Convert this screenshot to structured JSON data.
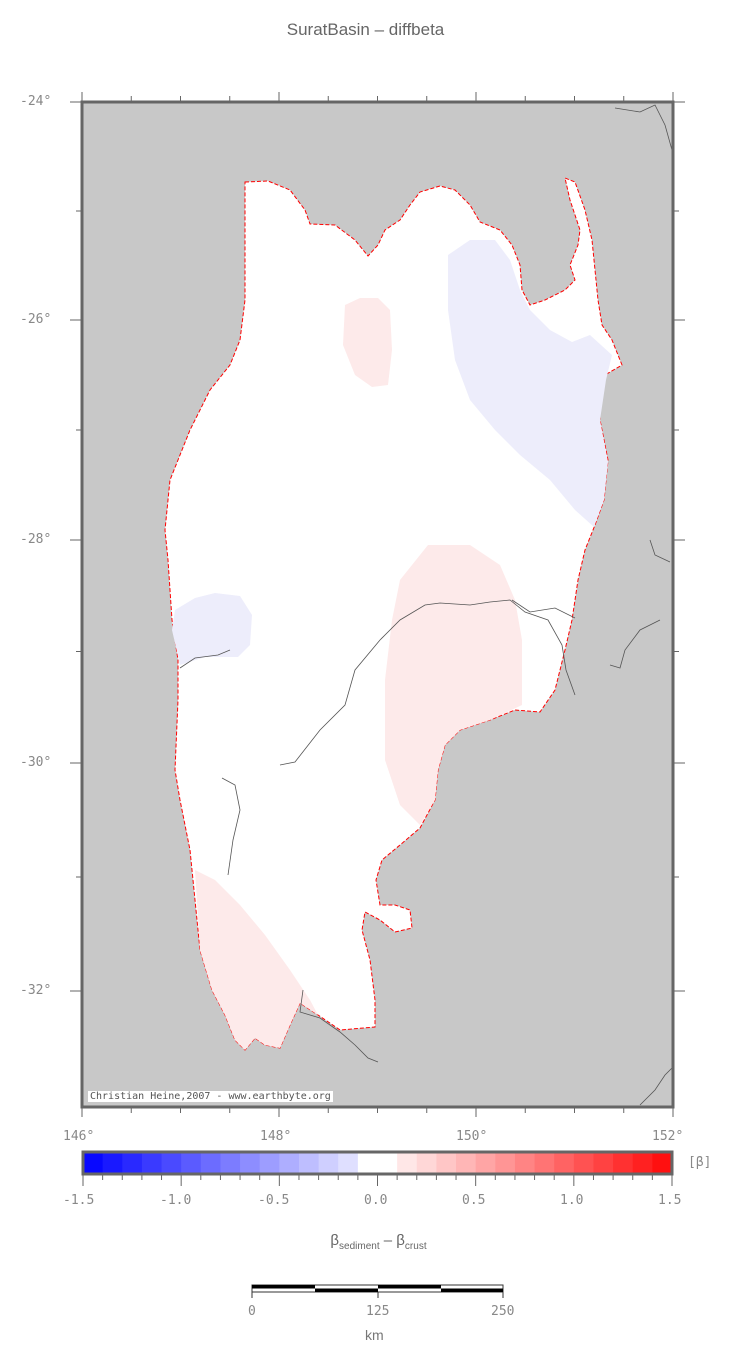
{
  "title": "SuratBasin – diffbeta",
  "map": {
    "lat_labels": [
      "-24°",
      "-26°",
      "-28°",
      "-30°",
      "-32°"
    ],
    "lon_labels": [
      "146°",
      "148°",
      "150°",
      "152°"
    ],
    "credit": "Christian Heine,2007 - www.earthbyte.org",
    "background_color": "#c8c8c8",
    "basin_fill": "#ffffff",
    "outline_color": "#ff0000"
  },
  "colorbar": {
    "tick_labels": [
      "-1.5",
      "-1.0",
      "-0.5",
      "0.0",
      "0.5",
      "1.0",
      "1.5"
    ],
    "range": [
      -1.5,
      1.5
    ],
    "step": 0.1,
    "unit": "[β]",
    "label_main": "β",
    "label_sub1": "sediment",
    "label_mid": " – β",
    "label_sub2": "crust",
    "low_color": "#0000ff",
    "high_color": "#ff0000"
  },
  "scalebar": {
    "labels": [
      "0",
      "125",
      "250"
    ],
    "unit": "km"
  }
}
